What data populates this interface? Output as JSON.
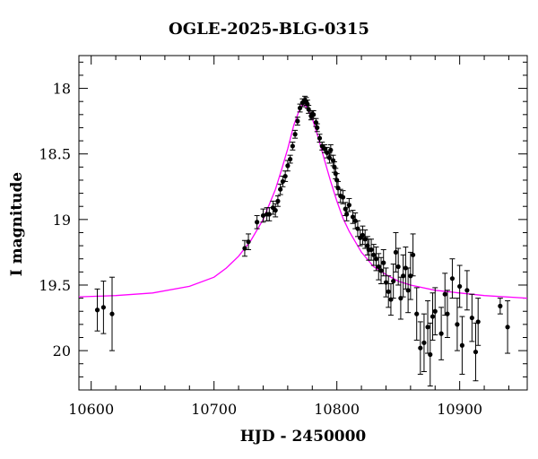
{
  "chart_data": {
    "type": "scatter",
    "title": "OGLE-2025-BLG-0315",
    "xlabel": "HJD - 2450000",
    "ylabel": "I magnitude",
    "xlim": [
      10590,
      10955
    ],
    "ylim": [
      20.3,
      17.75
    ],
    "y_inverted": true,
    "grid": false,
    "x_ticks": [
      10600,
      10700,
      10800,
      10900
    ],
    "y_ticks": [
      18,
      18.5,
      19,
      19.5,
      20
    ],
    "colors": {
      "data": "#000000",
      "model": "#ff00ff"
    },
    "model": {
      "name": "",
      "x": [
        10590,
        10620,
        10650,
        10680,
        10700,
        10710,
        10720,
        10730,
        10740,
        10750,
        10755,
        10760,
        10765,
        10770,
        10772,
        10775,
        10780,
        10785,
        10790,
        10795,
        10800,
        10805,
        10810,
        10820,
        10830,
        10840,
        10850,
        10860,
        10880,
        10900,
        10920,
        10955
      ],
      "y": [
        19.59,
        19.58,
        19.56,
        19.51,
        19.44,
        19.37,
        19.28,
        19.16,
        19.0,
        18.77,
        18.62,
        18.46,
        18.28,
        18.15,
        18.12,
        18.14,
        18.23,
        18.38,
        18.55,
        18.71,
        18.86,
        18.99,
        19.09,
        19.25,
        19.36,
        19.42,
        19.47,
        19.5,
        19.54,
        19.56,
        19.58,
        19.6
      ]
    },
    "series": [
      {
        "x": [
          10605,
          10610,
          10617,
          10725,
          10728,
          10735,
          10740,
          10743,
          10745,
          10748,
          10750,
          10752,
          10754,
          10756,
          10758,
          10760,
          10762,
          10764,
          10766,
          10768,
          10770,
          10772,
          10774,
          10775,
          10776,
          10777,
          10779,
          10780,
          10781,
          10783,
          10784,
          10786,
          10788,
          10790,
          10792,
          10794,
          10795,
          10797,
          10798,
          10799,
          10800,
          10801,
          10803,
          10805,
          10807,
          10808,
          10810,
          10813,
          10815,
          10817,
          10819,
          10821,
          10823,
          10825,
          10826,
          10828,
          10830,
          10832,
          10834,
          10836,
          10838,
          10840,
          10842,
          10844,
          10846,
          10848,
          10850,
          10852,
          10854,
          10856,
          10858,
          10860,
          10862,
          10865,
          10868,
          10871,
          10874,
          10876,
          10878,
          10880,
          10885,
          10888,
          10890,
          10894,
          10898,
          10900,
          10902,
          10906,
          10910,
          10913,
          10915,
          10933,
          10939
        ],
        "y": [
          19.69,
          19.67,
          19.72,
          19.22,
          19.17,
          19.02,
          18.97,
          18.96,
          18.96,
          18.91,
          18.93,
          18.86,
          18.77,
          18.71,
          18.67,
          18.59,
          18.54,
          18.44,
          18.35,
          18.25,
          18.15,
          18.11,
          18.09,
          18.1,
          18.12,
          18.16,
          18.21,
          18.2,
          18.2,
          18.26,
          18.3,
          18.38,
          18.44,
          18.46,
          18.49,
          18.53,
          18.47,
          18.55,
          18.6,
          18.65,
          18.7,
          18.76,
          18.82,
          18.83,
          18.92,
          18.96,
          18.89,
          18.98,
          19.01,
          19.07,
          19.14,
          19.12,
          19.15,
          19.2,
          19.23,
          19.23,
          19.27,
          19.3,
          19.36,
          19.39,
          19.33,
          19.48,
          19.55,
          19.61,
          19.47,
          19.25,
          19.36,
          19.6,
          19.43,
          19.37,
          19.54,
          19.43,
          19.27,
          19.72,
          19.98,
          19.94,
          19.82,
          20.03,
          19.74,
          19.7,
          19.87,
          19.57,
          19.72,
          19.45,
          19.8,
          19.51,
          19.96,
          19.54,
          19.75,
          20.01,
          19.78,
          19.66,
          19.82
        ],
        "yerr": [
          0.16,
          0.2,
          0.28,
          0.06,
          0.06,
          0.05,
          0.05,
          0.05,
          0.05,
          0.05,
          0.05,
          0.04,
          0.04,
          0.04,
          0.04,
          0.04,
          0.03,
          0.03,
          0.03,
          0.03,
          0.03,
          0.03,
          0.03,
          0.03,
          0.03,
          0.03,
          0.03,
          0.03,
          0.03,
          0.03,
          0.03,
          0.03,
          0.03,
          0.03,
          0.04,
          0.04,
          0.04,
          0.04,
          0.04,
          0.04,
          0.05,
          0.05,
          0.05,
          0.05,
          0.05,
          0.05,
          0.05,
          0.05,
          0.06,
          0.06,
          0.06,
          0.07,
          0.07,
          0.07,
          0.08,
          0.08,
          0.08,
          0.09,
          0.1,
          0.1,
          0.1,
          0.11,
          0.12,
          0.12,
          0.13,
          0.15,
          0.14,
          0.16,
          0.16,
          0.16,
          0.17,
          0.18,
          0.16,
          0.2,
          0.2,
          0.22,
          0.2,
          0.24,
          0.18,
          0.18,
          0.2,
          0.16,
          0.18,
          0.15,
          0.2,
          0.16,
          0.22,
          0.15,
          0.18,
          0.22,
          0.18,
          0.06,
          0.2
        ]
      }
    ]
  }
}
